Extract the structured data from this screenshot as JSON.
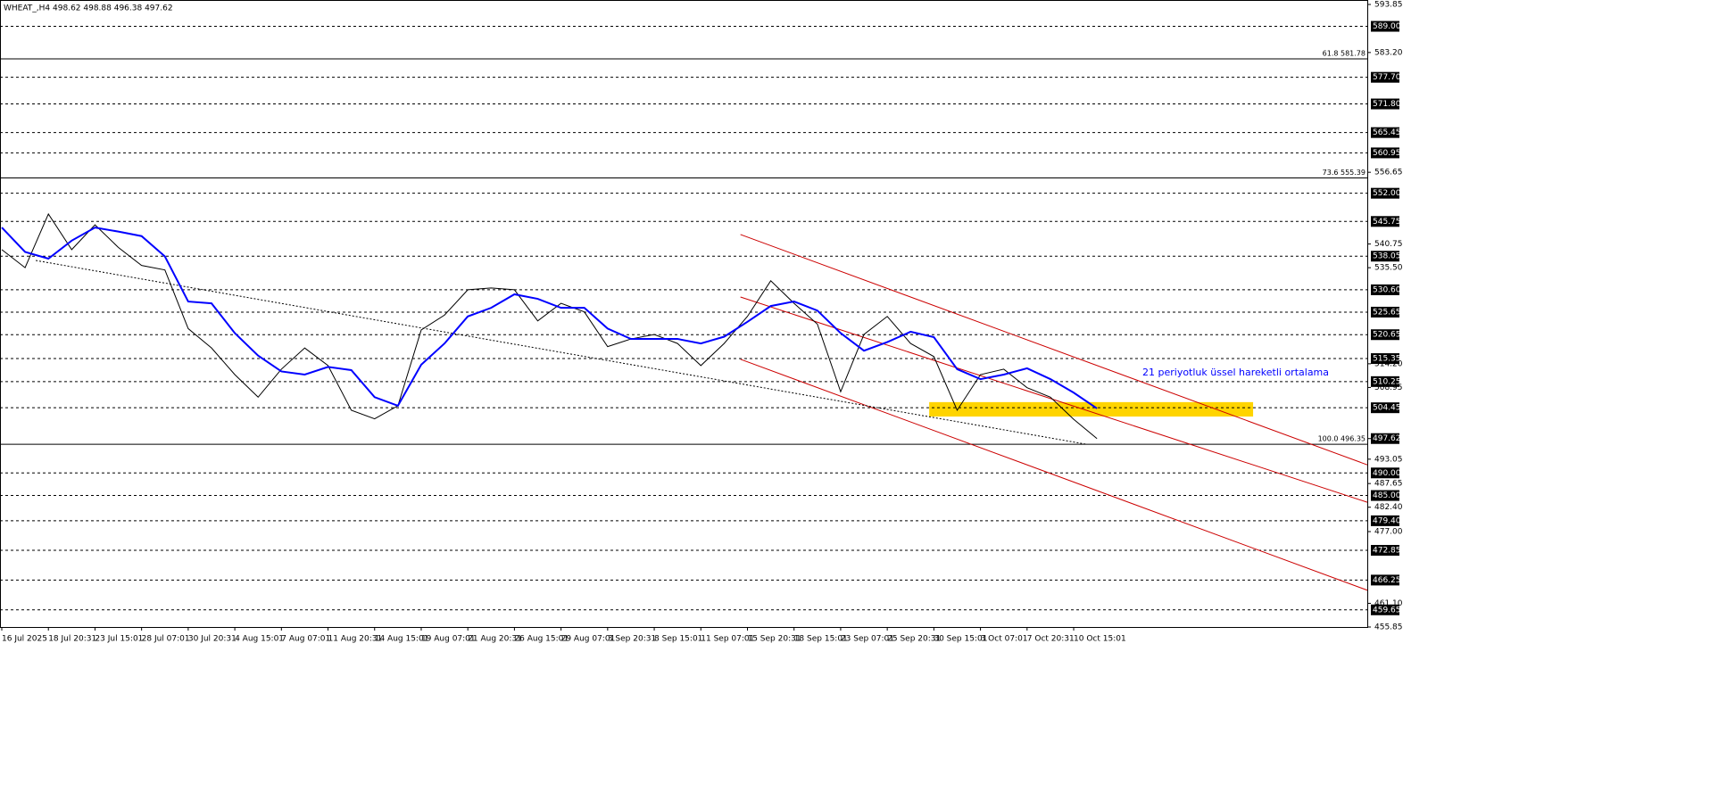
{
  "chart_data": {
    "type": "line",
    "title": "WHEAT_,H4  498.62 498.88 496.38 497.62",
    "categories": [
      "16 Jul 2025",
      null,
      "18 Jul 20:31",
      null,
      "23 Jul 15:01",
      null,
      "28 Jul 07:01",
      null,
      "30 Jul 20:31",
      null,
      "4 Aug 15:01",
      null,
      "7 Aug 07:01",
      null,
      "11 Aug 20:31",
      null,
      "14 Aug 15:01",
      null,
      "19 Aug 07:01",
      null,
      "21 Aug 20:31",
      null,
      "26 Aug 15:01",
      null,
      "29 Aug 07:01",
      null,
      "3 Sep 20:31",
      null,
      "8 Sep 15:01",
      null,
      "11 Sep 07:01",
      null,
      "15 Sep 20:31",
      null,
      "18 Sep 15:01",
      null,
      "23 Sep 07:01",
      null,
      "25 Sep 20:31",
      null,
      "30 Sep 15:01",
      null,
      "3 Oct 07:01",
      null,
      "7 Oct 20:31",
      null,
      "10 Oct 15:01",
      null
    ],
    "series": [
      {
        "name": "WHEAT_,H4",
        "color": "#000000",
        "values": [
          539.5,
          535.5,
          547.4,
          539.5,
          545,
          540,
          536,
          535,
          522,
          517.7,
          511.8,
          506.8,
          513,
          517.7,
          513.8,
          503.9,
          502,
          504.9,
          521.7,
          525,
          530.6,
          531,
          530.6,
          523.7,
          527.6,
          525.7,
          518,
          519.7,
          520.7,
          518.7,
          513.8,
          518.7,
          524.7,
          532.6,
          527.6,
          523,
          508,
          520.7,
          524.7,
          518.7,
          515.8,
          503.9,
          511.8,
          513,
          508.9,
          506.8,
          501.9,
          497.62
        ]
      },
      {
        "name": "21 periyotluk üssel hareketli ortalama",
        "color": "#0000ff",
        "values": [
          544.4,
          539,
          537.5,
          541.5,
          544.4,
          543.5,
          542.5,
          538,
          528,
          527.6,
          521,
          516,
          512.5,
          511.8,
          513.5,
          512.8,
          506.8,
          504.9,
          514,
          518.7,
          524.7,
          526.6,
          529.6,
          528.6,
          526.6,
          526.6,
          522,
          519.7,
          519.7,
          519.7,
          518.7,
          520.2,
          523.5,
          527,
          528,
          526,
          521,
          517.1,
          519,
          521.3,
          520.1,
          513,
          510.8,
          511.8,
          513.2,
          510.8,
          507.8,
          504.3
        ]
      }
    ],
    "xlim": [
      0,
      58.6
    ],
    "ylim": [
      455.85,
      593.85
    ],
    "yticks": [
      {
        "value": 593.85,
        "label": "593.85"
      },
      {
        "value": 583.2,
        "label": "583.20"
      },
      {
        "value": 556.65,
        "label": "556.65"
      },
      {
        "value": 540.75,
        "label": "540.75"
      },
      {
        "value": 535.5,
        "label": "535.50"
      },
      {
        "value": 514.2,
        "label": "514.20"
      },
      {
        "value": 508.95,
        "label": "508.95"
      },
      {
        "value": 493.05,
        "label": "493.05"
      },
      {
        "value": 487.65,
        "label": "487.65"
      },
      {
        "value": 482.4,
        "label": "482.40"
      },
      {
        "value": 477,
        "label": "477.00"
      },
      {
        "value": 461.1,
        "label": "461.10"
      },
      {
        "value": 455.85,
        "label": "455.85"
      }
    ],
    "levels": [
      {
        "value": 589,
        "label": "589.00"
      },
      {
        "value": 577.7,
        "label": "577.70"
      },
      {
        "value": 571.8,
        "label": "571.80"
      },
      {
        "value": 565.45,
        "label": "565.45"
      },
      {
        "value": 560.95,
        "label": "560.95"
      },
      {
        "value": 552,
        "label": "552.00"
      },
      {
        "value": 545.75,
        "label": "545.75"
      },
      {
        "value": 538.05,
        "label": "538.05"
      },
      {
        "value": 530.6,
        "label": "530.60"
      },
      {
        "value": 525.65,
        "label": "525.65"
      },
      {
        "value": 520.65,
        "label": "520.65"
      },
      {
        "value": 515.35,
        "label": "515.35"
      },
      {
        "value": 510.25,
        "label": "510.25"
      },
      {
        "value": 504.45,
        "label": "504.45"
      },
      {
        "value": 490,
        "label": "490.00"
      },
      {
        "value": 485,
        "label": "485.00"
      },
      {
        "value": 479.4,
        "label": "479.40"
      },
      {
        "value": 472.85,
        "label": "472.85"
      },
      {
        "value": 466.25,
        "label": "466.25"
      },
      {
        "value": 459.65,
        "label": "459.65"
      }
    ],
    "last_price": {
      "value": 497.62,
      "label": "497.62"
    },
    "fibo": [
      {
        "value": 581.78,
        "label": "61.8 581.78"
      },
      {
        "value": 555.39,
        "label": "73.6 555.39"
      },
      {
        "value": 496.35,
        "label": "100.0 496.35"
      }
    ],
    "channel_color": "#cc0000",
    "channel_lines": [
      {
        "x": [
          31.7,
          58.6
        ],
        "values": [
          542.85,
          491.8
        ]
      },
      {
        "x": [
          31.7,
          58.6
        ],
        "values": [
          529.0,
          483.5
        ]
      },
      {
        "x": [
          31.7,
          58.6
        ],
        "values": [
          515.2,
          464.0
        ]
      }
    ],
    "trendline": {
      "x": [
        1.46,
        46.5
      ],
      "values": [
        537.1,
        496.4
      ]
    },
    "zone": {
      "color": "#ffd400",
      "x": [
        39.8,
        53.7
      ],
      "values": [
        505.7,
        502.5
      ]
    },
    "annotation": "21 periyotluk üssel hareketli ortalama"
  }
}
